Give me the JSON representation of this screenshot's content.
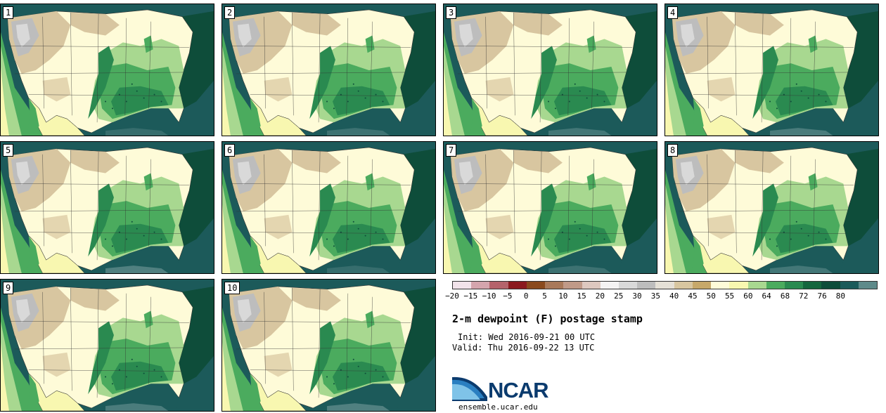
{
  "stamps": [
    {
      "label": "1"
    },
    {
      "label": "2"
    },
    {
      "label": "3"
    },
    {
      "label": "4"
    },
    {
      "label": "5"
    },
    {
      "label": "6"
    },
    {
      "label": "7"
    },
    {
      "label": "8"
    },
    {
      "label": "9"
    },
    {
      "label": "10"
    }
  ],
  "colorbar": {
    "colors": [
      "#f2e3ea",
      "#d4a5ad",
      "#b5636b",
      "#8b1a1f",
      "#8a4a1e",
      "#a9795a",
      "#c09a88",
      "#ddc8bf",
      "#f4f3f3",
      "#d9d9d9",
      "#bdbdbd",
      "#e5e0d6",
      "#d8c6a0",
      "#c7a86a",
      "#fefbd8",
      "#f8f7b0",
      "#a8d890",
      "#4bab5e",
      "#2a8a50",
      "#15663e",
      "#0e4d3a",
      "#1c5a5a",
      "#5e8a8a"
    ],
    "ticks": [
      "−20",
      "−15",
      "−10",
      "−5",
      "0",
      "5",
      "10",
      "15",
      "20",
      "25",
      "30",
      "35",
      "40",
      "45",
      "50",
      "55",
      "60",
      "64",
      "68",
      "72",
      "76",
      "80"
    ]
  },
  "title": "2-m dewpoint (F) postage stamp",
  "init": "Init: Wed 2016-09-21 00 UTC",
  "valid": "Valid: Thu 2016-09-22 13 UTC",
  "logo_text": "NCAR",
  "site": "ensemble.ucar.edu"
}
